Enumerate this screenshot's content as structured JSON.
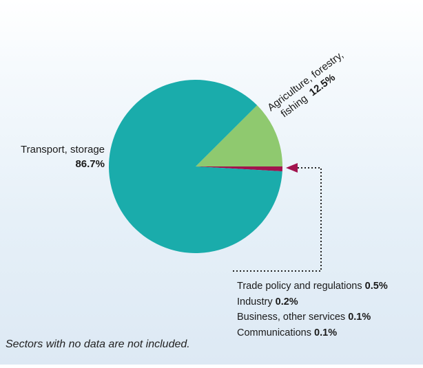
{
  "colors": {
    "transport": "#1aacab",
    "agriculture": "#8fc96f",
    "other": "#a2144e",
    "connector": "#222222"
  },
  "chart_data": {
    "type": "pie",
    "slices": [
      {
        "name": "Transport, storage",
        "value": 86.7,
        "value_label": "86.7%",
        "color": "#1aacab"
      },
      {
        "name": "Agriculture, forestry, fishing",
        "value": 12.5,
        "value_label": "12.5%",
        "color": "#8fc96f"
      },
      {
        "name": "Trade policy and regulations, Industry, Business, other services, Communications",
        "value": 0.9,
        "color": "#a2144e"
      }
    ],
    "labels": {
      "transport_name": "Transport, storage",
      "transport_value": "86.7%",
      "agri_line1": "Agriculture, forestry,",
      "agri_line2": "fishing",
      "agri_value": "12.5%"
    },
    "breakdown": [
      {
        "name": "Trade policy and regulations",
        "value": "0.5%"
      },
      {
        "name": "Industry",
        "value": "0.2%"
      },
      {
        "name": "Business, other services",
        "value": "0.1%"
      },
      {
        "name": "Communications",
        "value": "0.1%"
      }
    ]
  },
  "footnote": "Sectors with no data are not included."
}
